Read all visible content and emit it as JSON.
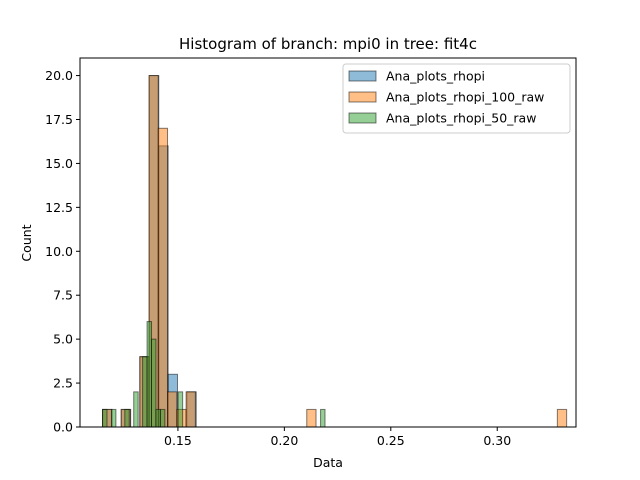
{
  "chart_data": {
    "type": "bar",
    "title": "Histogram of branch: mpi0 in tree: fit4c",
    "xlabel": "Data",
    "ylabel": "Count",
    "xlim": [
      0.104,
      0.337
    ],
    "ylim": [
      0,
      21
    ],
    "xticks": [
      0.15,
      0.2,
      0.25,
      0.3
    ],
    "xtick_labels": [
      "0.15",
      "0.20",
      "0.25",
      "0.30"
    ],
    "yticks": [
      0,
      2.5,
      5,
      7.5,
      10,
      12.5,
      15,
      17.5,
      20
    ],
    "ytick_labels": [
      "0.0",
      "2.5",
      "5.0",
      "7.5",
      "10.0",
      "12.5",
      "15.0",
      "17.5",
      "20.0"
    ],
    "grid": false,
    "legend_position": "top-right",
    "series": [
      {
        "name": "Ana_plots_rhopi",
        "color": "#1f77b4",
        "bin_start": 0.1146,
        "bin_width": 0.0044,
        "counts": [
          1,
          0,
          1,
          0,
          4,
          20,
          16,
          3,
          0,
          2
        ]
      },
      {
        "name": "Ana_plots_rhopi_100_raw",
        "color": "#ff7f0e",
        "bin_start": 0.1146,
        "bin_width": 0.00436,
        "counts": [
          1,
          0,
          1,
          0,
          4,
          20,
          17,
          2,
          1,
          2,
          0,
          0,
          0,
          0,
          0,
          0,
          0,
          0,
          0,
          0,
          0,
          0,
          1,
          0,
          0,
          0,
          0,
          0,
          0,
          0,
          0,
          0,
          0,
          0,
          0,
          0,
          0,
          0,
          0,
          0,
          0,
          0,
          0,
          0,
          0,
          0,
          0,
          0,
          0,
          1
        ]
      },
      {
        "name": "Ana_plots_rhopi_50_raw",
        "color": "#2ca02c",
        "bin_start": 0.1146,
        "bin_width": 0.00209,
        "counts": [
          1,
          0,
          1,
          0,
          0,
          1,
          0,
          2,
          0,
          4,
          6,
          5,
          1,
          1,
          0,
          0,
          0,
          2,
          0,
          0,
          0,
          0,
          0,
          0,
          0,
          0,
          0,
          0,
          0,
          0,
          0,
          0,
          0,
          0,
          0,
          0,
          0,
          0,
          0,
          0,
          0,
          0,
          0,
          0,
          0,
          0,
          0,
          0,
          0,
          1
        ]
      }
    ]
  }
}
